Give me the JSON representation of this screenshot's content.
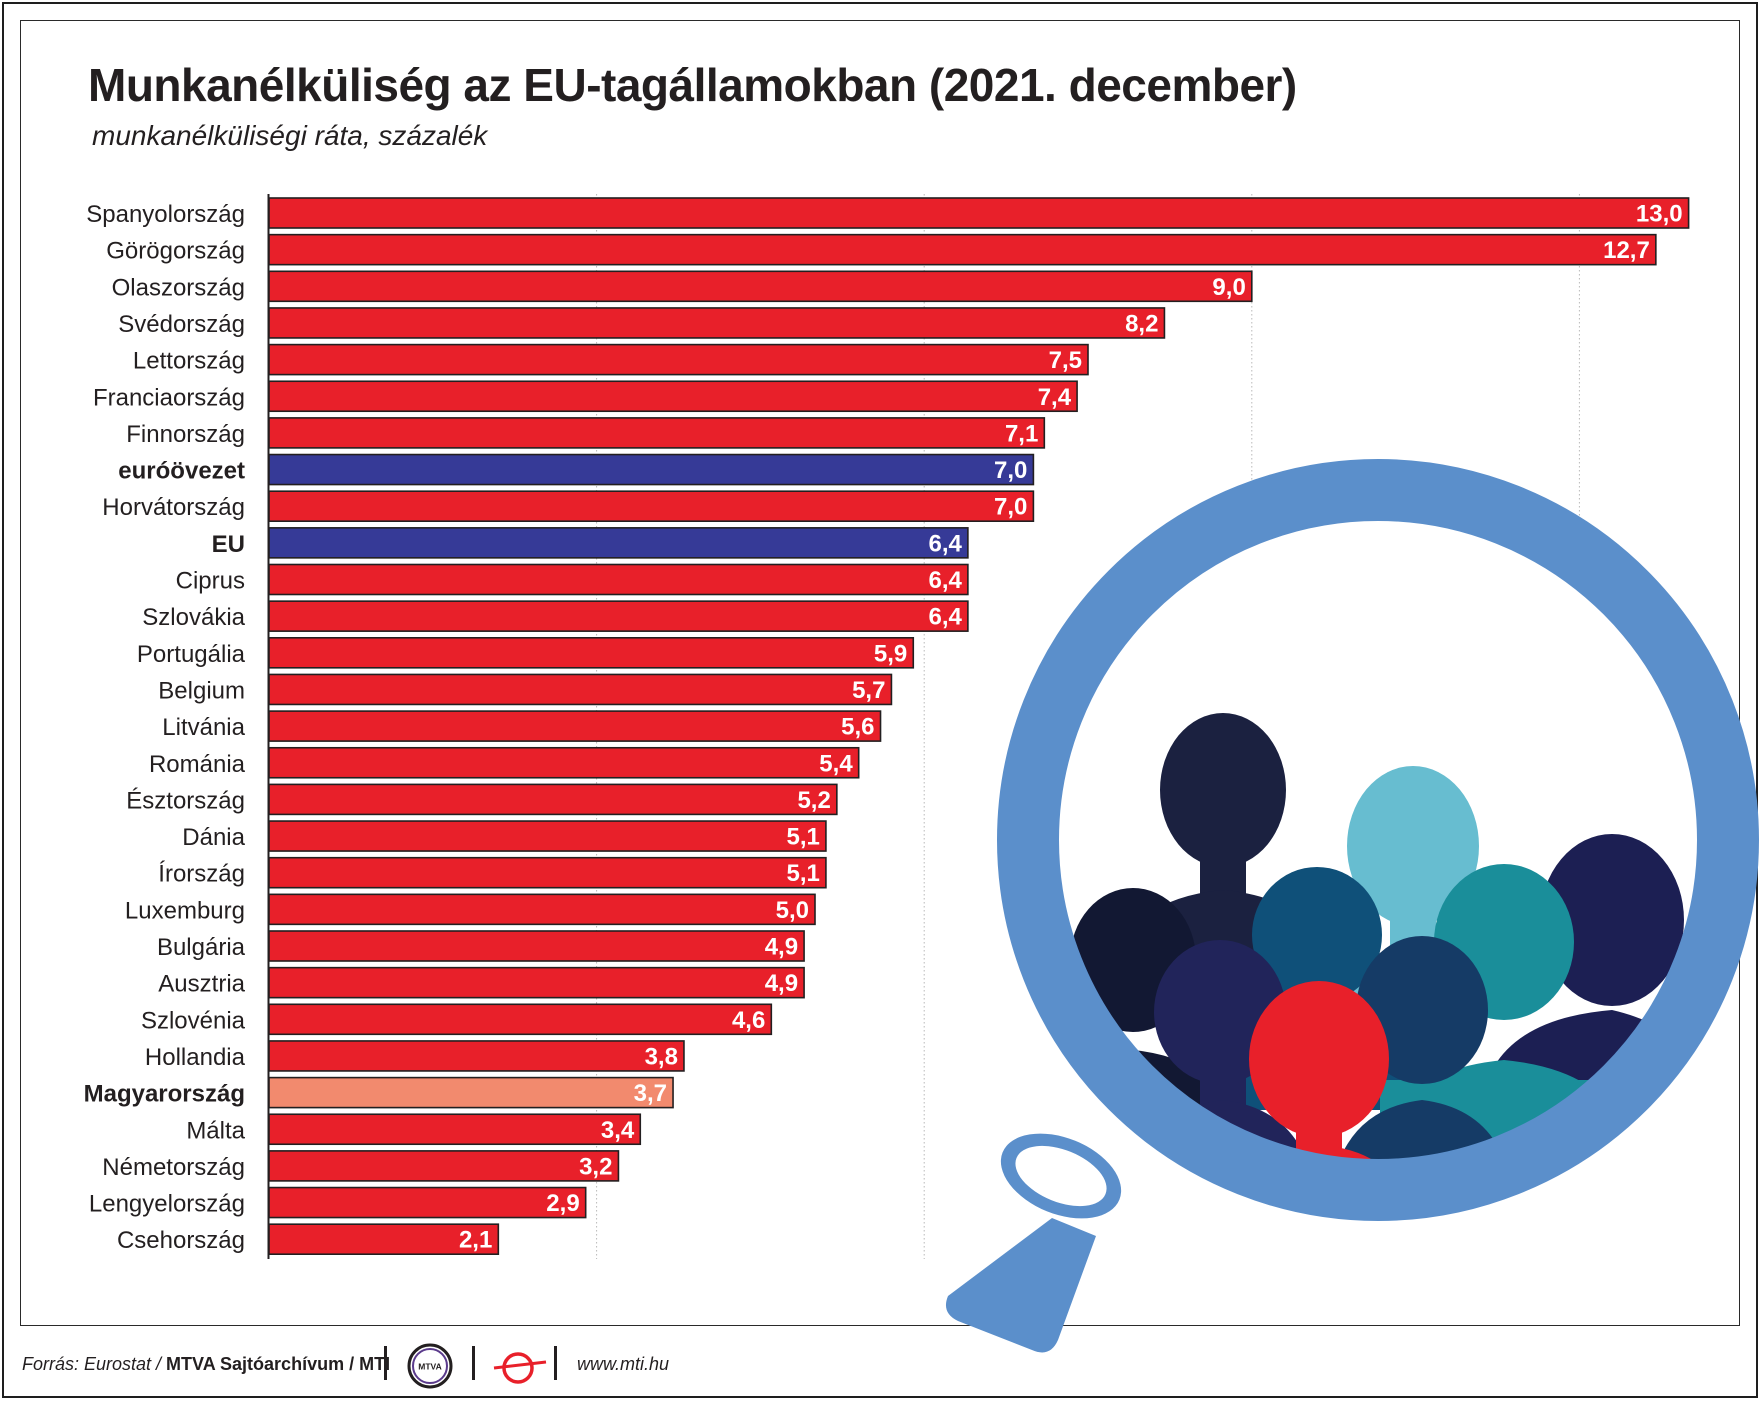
{
  "title": "Munkanélküliség az EU-tagállamokban (2021. december)",
  "subtitle": "munkanélküliségi ráta, százalék",
  "colors": {
    "country": "#e8202a",
    "aggregate": "#363a97",
    "hungary": "#f28a6e",
    "bar_stroke": "#231f20",
    "grid": "#b9b9b9",
    "lens_ring": "#5b8fcb"
  },
  "chart_data": {
    "type": "bar",
    "orientation": "horizontal",
    "title": "Munkanélküliség az EU-tagállamokban (2021. december)",
    "subtitle": "munkanélküliségi ráta, százalék",
    "xlim": [
      0,
      14
    ],
    "grid": "vertical, dotted",
    "categories": [
      "Spanyolország",
      "Görögország",
      "Olaszország",
      "Svédország",
      "Lettország",
      "Franciaország",
      "Finnország",
      "euróövezet",
      "Horvátország",
      "EU",
      "Ciprus",
      "Szlovákia",
      "Portugália",
      "Belgium",
      "Litvánia",
      "Románia",
      "Észtország",
      "Dánia",
      "Írország",
      "Luxemburg",
      "Bulgária",
      "Ausztria",
      "Szlovénia",
      "Hollandia",
      "Magyarország",
      "Málta",
      "Németország",
      "Lengyelország",
      "Csehország"
    ],
    "values": [
      13.0,
      12.7,
      9.0,
      8.2,
      7.5,
      7.4,
      7.1,
      7.0,
      7.0,
      6.4,
      6.4,
      6.4,
      5.9,
      5.7,
      5.6,
      5.4,
      5.2,
      5.1,
      5.1,
      5.0,
      4.9,
      4.9,
      4.6,
      3.8,
      3.7,
      3.4,
      3.2,
      2.9,
      2.1
    ],
    "value_labels": [
      "13,0",
      "12,7",
      "9,0",
      "8,2",
      "7,5",
      "7,4",
      "7,1",
      "7,0",
      "7,0",
      "6,4",
      "6,4",
      "6,4",
      "5,9",
      "5,7",
      "5,6",
      "5,4",
      "5,2",
      "5,1",
      "5,1",
      "5,0",
      "4,9",
      "4,9",
      "4,6",
      "3,8",
      "3,7",
      "3,4",
      "3,2",
      "2,9",
      "2,1"
    ],
    "kinds": [
      "country",
      "country",
      "country",
      "country",
      "country",
      "country",
      "country",
      "aggregate",
      "country",
      "aggregate",
      "country",
      "country",
      "country",
      "country",
      "country",
      "country",
      "country",
      "country",
      "country",
      "country",
      "country",
      "country",
      "country",
      "country",
      "hungary",
      "country",
      "country",
      "country",
      "country"
    ],
    "bold_labels": [
      "euróövezet",
      "EU",
      "Magyarország"
    ]
  },
  "footer": {
    "source_prefix": "Forrás: Eurostat / ",
    "source_org": "MTVA Sajtóarchívum / MTI",
    "mtva_logo_text": "MTVA",
    "url": "www.mti.hu"
  }
}
